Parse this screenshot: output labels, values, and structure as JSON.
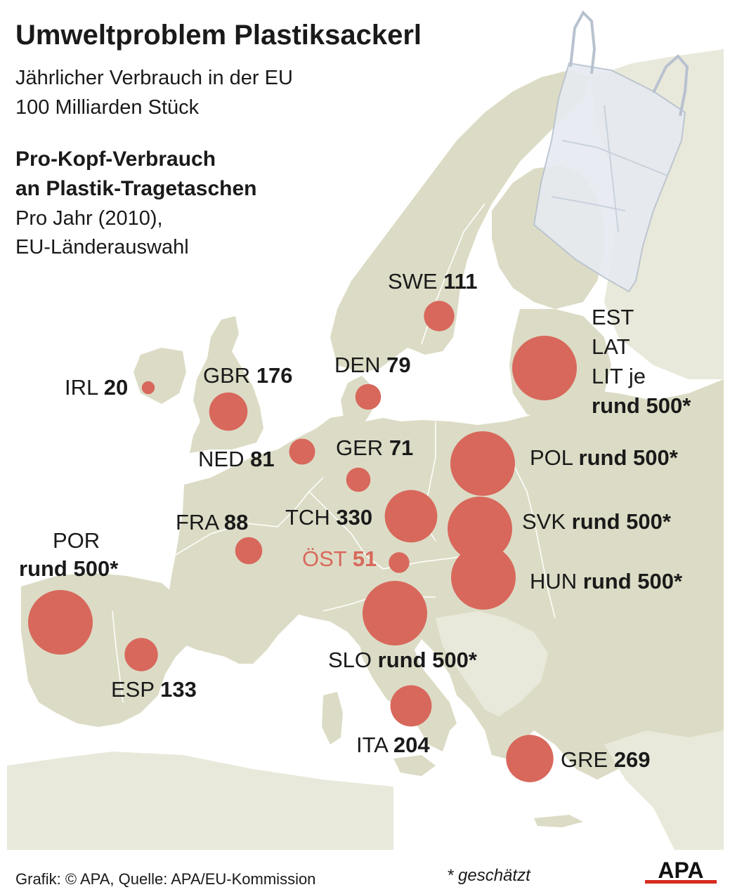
{
  "title": "Umweltproblem Plastiksackerl",
  "subtitle_line1": "Jährlicher Verbrauch in der EU",
  "subtitle_line2": "100 Milliarden Stück",
  "heading_line1": "Pro-Kopf-Verbrauch",
  "heading_line2": "an Plastik-Tragetaschen",
  "period_line1": "Pro Jahr (2010),",
  "period_line2": "EU-Länderauswahl",
  "colors": {
    "bubble": "#d8685c",
    "land_eu": "#dcdcc6",
    "land_other": "#e9e9db",
    "sea": "#ffffff",
    "border": "#ffffff"
  },
  "map_data": {
    "unit": "Plastik-Tragetaschen pro Kopf und Jahr",
    "countries": [
      {
        "code": "SWE",
        "value": 111
      },
      {
        "code": "DEN",
        "value": 79
      },
      {
        "code": "IRL",
        "value": 20
      },
      {
        "code": "GBR",
        "value": 176
      },
      {
        "code": "NED",
        "value": 81
      },
      {
        "code": "GER",
        "value": 71
      },
      {
        "code": "FRA",
        "value": 88
      },
      {
        "code": "TCH",
        "value": 330
      },
      {
        "code": "ÖST",
        "value": 51,
        "highlight": true
      },
      {
        "code": "POR",
        "value": 500,
        "estimated": true
      },
      {
        "code": "ESP",
        "value": 133
      },
      {
        "code": "SLO",
        "value": 500,
        "estimated": true
      },
      {
        "code": "ITA",
        "value": 204
      },
      {
        "code": "GRE",
        "value": 269
      },
      {
        "code": "POL",
        "value": 500,
        "estimated": true
      },
      {
        "code": "SVK",
        "value": 500,
        "estimated": true
      },
      {
        "code": "HUN",
        "value": 500,
        "estimated": true
      },
      {
        "code": "EST",
        "value": 500,
        "estimated": true
      },
      {
        "code": "LAT",
        "value": 500,
        "estimated": true
      },
      {
        "code": "LIT",
        "value": 500,
        "estimated": true
      }
    ]
  },
  "labels": {
    "swe": {
      "code": "SWE",
      "value": "111"
    },
    "den": {
      "code": "DEN",
      "value": "79"
    },
    "irl": {
      "code": "IRL",
      "value": "20"
    },
    "gbr": {
      "code": "GBR",
      "value": "176"
    },
    "ned": {
      "code": "NED",
      "value": "81"
    },
    "ger": {
      "code": "GER",
      "value": "71"
    },
    "fra": {
      "code": "FRA",
      "value": "88"
    },
    "tch": {
      "code": "TCH",
      "value": "330"
    },
    "ost": {
      "code": "ÖST",
      "value": "51"
    },
    "por": {
      "code": "POR",
      "value": "rund 500*"
    },
    "esp": {
      "code": "ESP",
      "value": "133"
    },
    "slo": {
      "code": "SLO",
      "value": "rund 500*"
    },
    "ita": {
      "code": "ITA",
      "value": "204"
    },
    "gre": {
      "code": "GRE",
      "value": "269"
    },
    "pol": {
      "code": "POL",
      "value": "rund 500*"
    },
    "svk": {
      "code": "SVK",
      "value": "rund 500*"
    },
    "hun": {
      "code": "HUN",
      "value": "rund 500*"
    },
    "baltic": {
      "line1": "EST",
      "line2": "LAT",
      "line3": "LIT je",
      "value": "rund 500*"
    }
  },
  "footer": {
    "source": "Grafik: © APA, Quelle: APA/EU-Kommission",
    "note": "* geschätzt",
    "logo_text": "APA"
  }
}
